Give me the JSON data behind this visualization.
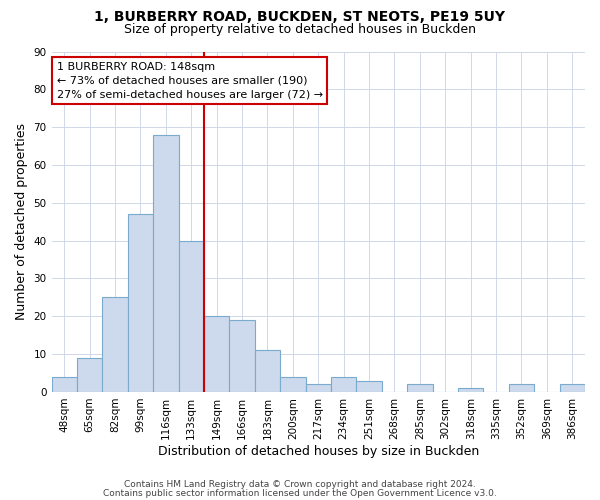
{
  "title": "1, BURBERRY ROAD, BUCKDEN, ST NEOTS, PE19 5UY",
  "subtitle": "Size of property relative to detached houses in Buckden",
  "xlabel": "Distribution of detached houses by size in Buckden",
  "ylabel": "Number of detached properties",
  "bin_labels": [
    "48sqm",
    "65sqm",
    "82sqm",
    "99sqm",
    "116sqm",
    "133sqm",
    "149sqm",
    "166sqm",
    "183sqm",
    "200sqm",
    "217sqm",
    "234sqm",
    "251sqm",
    "268sqm",
    "285sqm",
    "302sqm",
    "318sqm",
    "335sqm",
    "352sqm",
    "369sqm",
    "386sqm"
  ],
  "bar_values": [
    4,
    9,
    25,
    47,
    68,
    40,
    20,
    19,
    11,
    4,
    2,
    4,
    3,
    0,
    2,
    0,
    1,
    0,
    2,
    0,
    2
  ],
  "bar_color": "#cdd9ec",
  "bar_edge_color": "#7aaace",
  "vline_x": 5.5,
  "vline_color": "#cc0000",
  "ylim": [
    0,
    90
  ],
  "yticks": [
    0,
    10,
    20,
    30,
    40,
    50,
    60,
    70,
    80,
    90
  ],
  "annotation_title": "1 BURBERRY ROAD: 148sqm",
  "annotation_line1": "← 73% of detached houses are smaller (190)",
  "annotation_line2": "27% of semi-detached houses are larger (72) →",
  "annotation_box_color": "#ffffff",
  "annotation_box_edge": "#cc0000",
  "footer_line1": "Contains HM Land Registry data © Crown copyright and database right 2024.",
  "footer_line2": "Contains public sector information licensed under the Open Government Licence v3.0.",
  "title_fontsize": 10,
  "subtitle_fontsize": 9,
  "axis_label_fontsize": 9,
  "tick_fontsize": 7.5,
  "footer_fontsize": 6.5
}
